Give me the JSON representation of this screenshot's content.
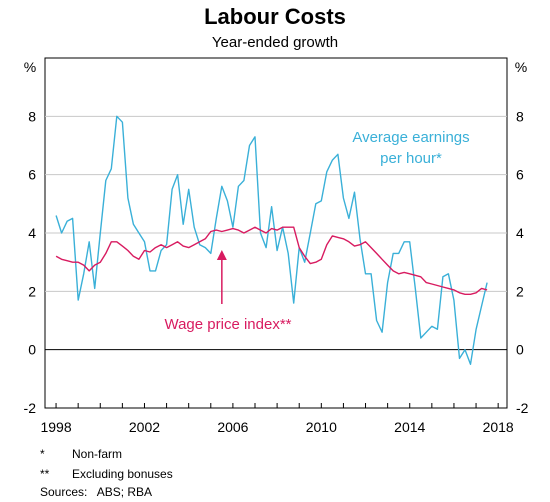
{
  "chart_data": {
    "type": "line",
    "title": "Labour Costs",
    "subtitle": "Year-ended growth",
    "y_unit_left": "%",
    "y_unit_right": "%",
    "xlim": [
      1997.5,
      2018.4
    ],
    "ylim": [
      -2,
      10
    ],
    "y_ticks": [
      -2,
      0,
      2,
      4,
      6,
      8
    ],
    "x_ticks": [
      1998,
      2002,
      2006,
      2010,
      2014,
      2018
    ],
    "grid": true,
    "series": [
      {
        "name": "Average earnings per hour*",
        "label_lines": [
          "Average earnings",
          "per hour*"
        ],
        "color": "#3ab0d8",
        "points": [
          [
            1998.0,
            4.6
          ],
          [
            1998.25,
            4.0
          ],
          [
            1998.5,
            4.4
          ],
          [
            1998.75,
            4.5
          ],
          [
            1999.0,
            1.7
          ],
          [
            1999.25,
            2.6
          ],
          [
            1999.5,
            3.7
          ],
          [
            1999.75,
            2.1
          ],
          [
            2000.0,
            4.0
          ],
          [
            2000.25,
            5.8
          ],
          [
            2000.5,
            6.2
          ],
          [
            2000.75,
            8.0
          ],
          [
            2001.0,
            7.8
          ],
          [
            2001.25,
            5.2
          ],
          [
            2001.5,
            4.3
          ],
          [
            2001.75,
            4.0
          ],
          [
            2002.0,
            3.7
          ],
          [
            2002.25,
            2.7
          ],
          [
            2002.5,
            2.7
          ],
          [
            2002.75,
            3.4
          ],
          [
            2003.0,
            3.6
          ],
          [
            2003.25,
            5.5
          ],
          [
            2003.5,
            6.0
          ],
          [
            2003.75,
            4.3
          ],
          [
            2004.0,
            5.5
          ],
          [
            2004.25,
            4.2
          ],
          [
            2004.5,
            3.6
          ],
          [
            2004.75,
            3.5
          ],
          [
            2005.0,
            3.3
          ],
          [
            2005.25,
            4.5
          ],
          [
            2005.5,
            5.6
          ],
          [
            2005.75,
            5.1
          ],
          [
            2006.0,
            4.2
          ],
          [
            2006.25,
            5.6
          ],
          [
            2006.5,
            5.8
          ],
          [
            2006.75,
            7.0
          ],
          [
            2007.0,
            7.3
          ],
          [
            2007.25,
            4.0
          ],
          [
            2007.5,
            3.5
          ],
          [
            2007.75,
            4.9
          ],
          [
            2008.0,
            3.4
          ],
          [
            2008.25,
            4.2
          ],
          [
            2008.5,
            3.3
          ],
          [
            2008.75,
            1.6
          ],
          [
            2009.0,
            3.5
          ],
          [
            2009.25,
            3.0
          ],
          [
            2009.5,
            4.0
          ],
          [
            2009.75,
            5.0
          ],
          [
            2010.0,
            5.1
          ],
          [
            2010.25,
            6.1
          ],
          [
            2010.5,
            6.5
          ],
          [
            2010.75,
            6.7
          ],
          [
            2011.0,
            5.2
          ],
          [
            2011.25,
            4.5
          ],
          [
            2011.5,
            5.4
          ],
          [
            2011.75,
            3.8
          ],
          [
            2012.0,
            2.6
          ],
          [
            2012.25,
            2.6
          ],
          [
            2012.5,
            1.0
          ],
          [
            2012.75,
            0.6
          ],
          [
            2013.0,
            2.3
          ],
          [
            2013.25,
            3.3
          ],
          [
            2013.5,
            3.3
          ],
          [
            2013.75,
            3.7
          ],
          [
            2014.0,
            3.7
          ],
          [
            2014.25,
            2.1
          ],
          [
            2014.5,
            0.4
          ],
          [
            2014.75,
            0.6
          ],
          [
            2015.0,
            0.8
          ],
          [
            2015.25,
            0.7
          ],
          [
            2015.5,
            2.5
          ],
          [
            2015.75,
            2.6
          ],
          [
            2016.0,
            1.7
          ],
          [
            2016.25,
            -0.3
          ],
          [
            2016.5,
            0.0
          ],
          [
            2016.75,
            -0.5
          ],
          [
            2017.0,
            0.7
          ],
          [
            2017.25,
            1.5
          ],
          [
            2017.5,
            2.3
          ]
        ]
      },
      {
        "name": "Wage price index**",
        "label_lines": [
          "Wage price index**"
        ],
        "color": "#d81b60",
        "points": [
          [
            1998.0,
            3.2
          ],
          [
            1998.25,
            3.1
          ],
          [
            1998.5,
            3.05
          ],
          [
            1998.75,
            3.0
          ],
          [
            1999.0,
            3.0
          ],
          [
            1999.25,
            2.9
          ],
          [
            1999.5,
            2.7
          ],
          [
            1999.75,
            2.9
          ],
          [
            2000.0,
            3.0
          ],
          [
            2000.25,
            3.3
          ],
          [
            2000.5,
            3.7
          ],
          [
            2000.75,
            3.7
          ],
          [
            2001.0,
            3.55
          ],
          [
            2001.25,
            3.4
          ],
          [
            2001.5,
            3.2
          ],
          [
            2001.75,
            3.1
          ],
          [
            2002.0,
            3.4
          ],
          [
            2002.25,
            3.35
          ],
          [
            2002.5,
            3.5
          ],
          [
            2002.75,
            3.6
          ],
          [
            2003.0,
            3.5
          ],
          [
            2003.25,
            3.6
          ],
          [
            2003.5,
            3.7
          ],
          [
            2003.75,
            3.55
          ],
          [
            2004.0,
            3.5
          ],
          [
            2004.25,
            3.6
          ],
          [
            2004.5,
            3.7
          ],
          [
            2004.75,
            3.8
          ],
          [
            2005.0,
            4.05
          ],
          [
            2005.25,
            4.1
          ],
          [
            2005.5,
            4.05
          ],
          [
            2005.75,
            4.1
          ],
          [
            2006.0,
            4.15
          ],
          [
            2006.25,
            4.1
          ],
          [
            2006.5,
            4.0
          ],
          [
            2006.75,
            4.1
          ],
          [
            2007.0,
            4.2
          ],
          [
            2007.25,
            4.1
          ],
          [
            2007.5,
            4.0
          ],
          [
            2007.75,
            4.15
          ],
          [
            2008.0,
            4.1
          ],
          [
            2008.25,
            4.2
          ],
          [
            2008.5,
            4.2
          ],
          [
            2008.75,
            4.2
          ],
          [
            2009.0,
            3.5
          ],
          [
            2009.25,
            3.2
          ],
          [
            2009.5,
            2.95
          ],
          [
            2009.75,
            3.0
          ],
          [
            2010.0,
            3.1
          ],
          [
            2010.25,
            3.6
          ],
          [
            2010.5,
            3.9
          ],
          [
            2010.75,
            3.85
          ],
          [
            2011.0,
            3.8
          ],
          [
            2011.25,
            3.7
          ],
          [
            2011.5,
            3.55
          ],
          [
            2011.75,
            3.6
          ],
          [
            2012.0,
            3.7
          ],
          [
            2012.25,
            3.5
          ],
          [
            2012.5,
            3.3
          ],
          [
            2012.75,
            3.1
          ],
          [
            2013.0,
            2.9
          ],
          [
            2013.25,
            2.7
          ],
          [
            2013.5,
            2.6
          ],
          [
            2013.75,
            2.65
          ],
          [
            2014.0,
            2.6
          ],
          [
            2014.25,
            2.55
          ],
          [
            2014.5,
            2.5
          ],
          [
            2014.75,
            2.3
          ],
          [
            2015.0,
            2.25
          ],
          [
            2015.25,
            2.2
          ],
          [
            2015.5,
            2.15
          ],
          [
            2015.75,
            2.1
          ],
          [
            2016.0,
            2.05
          ],
          [
            2016.25,
            1.95
          ],
          [
            2016.5,
            1.9
          ],
          [
            2016.75,
            1.9
          ],
          [
            2017.0,
            1.95
          ],
          [
            2017.25,
            2.1
          ],
          [
            2017.5,
            2.05
          ]
        ]
      }
    ],
    "notes": [
      {
        "mark": "*",
        "text": "Non-farm"
      },
      {
        "mark": "**",
        "text": "Excluding bonuses"
      }
    ],
    "sources": "Sources:   ABS; RBA"
  }
}
